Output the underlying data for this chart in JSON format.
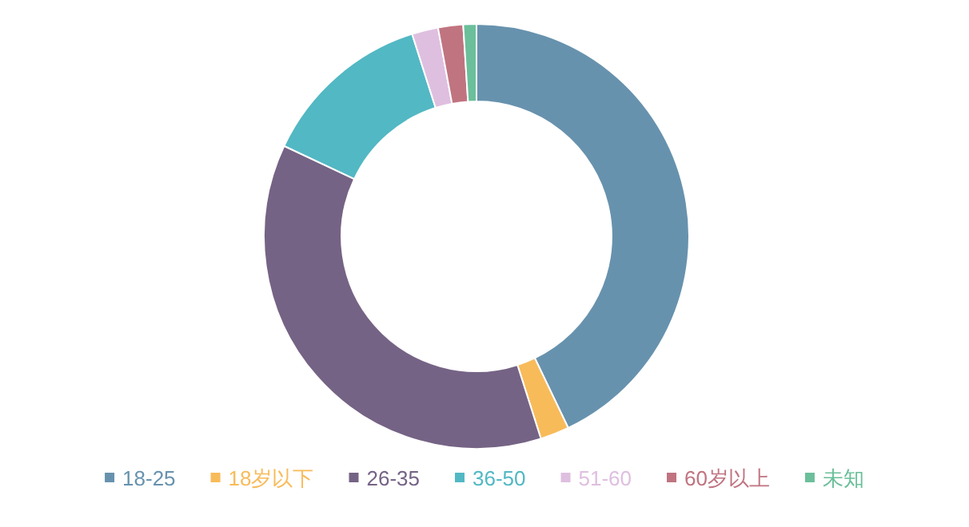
{
  "chart_data": {
    "type": "donut",
    "categories": [
      "18-25",
      "18岁以下",
      "26-35",
      "36-50",
      "51-60",
      "60岁以上",
      "未知"
    ],
    "values": [
      42.9,
      2.2,
      36.9,
      13.1,
      2.0,
      1.9,
      1.0
    ],
    "colors": [
      "#6792ae",
      "#f8bb5a",
      "#756385",
      "#52b8c4",
      "#dfbfe0",
      "#c07480",
      "#6bbf9a"
    ],
    "legend": "bottom"
  }
}
